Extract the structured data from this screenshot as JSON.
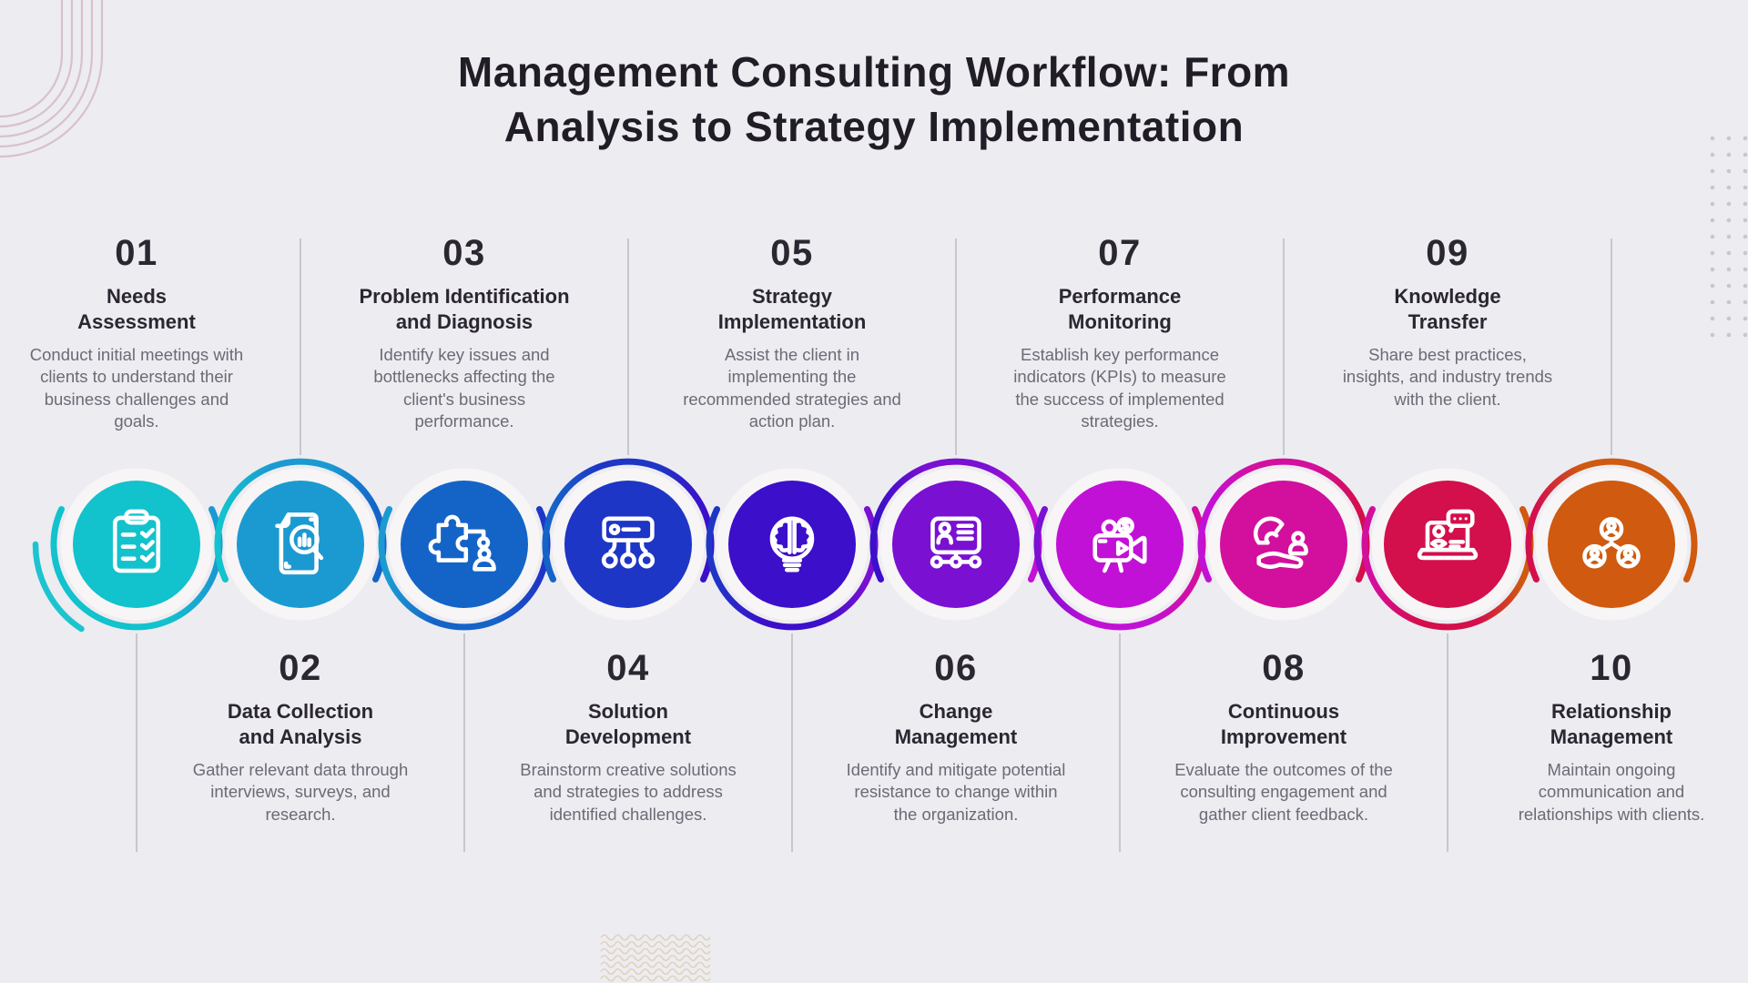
{
  "title": "Management Consulting Workflow: From\nAnalysis to Strategy Implementation",
  "background_color": "#edecf1",
  "text_colors": {
    "heading": "#211d26",
    "step_number": "#2b2731",
    "step_title": "#2b2731",
    "step_description": "#6c6a75"
  },
  "decorations": {
    "corner_arcs_color": "#c79fab",
    "dots_grid_color": "#c8c6ce",
    "waves_color": "#d8c29c",
    "divider_line_color": "#a09ea8",
    "ring_white": "#f7f5f6"
  },
  "steps": [
    {
      "number": "01",
      "title": "Needs\nAssessment",
      "description": "Conduct initial meetings with clients to understand their business challenges and goals.",
      "color": "#12c2cc",
      "icon": "clipboard-checklist",
      "text_position": "top"
    },
    {
      "number": "02",
      "title": "Data Collection\nand Analysis",
      "description": "Gather relevant data through interviews, surveys, and research.",
      "color": "#1b9ad2",
      "icon": "document-analysis",
      "text_position": "bottom"
    },
    {
      "number": "03",
      "title": "Problem Identification\nand Diagnosis",
      "description": "Identify key issues and bottlenecks affecting the client's business performance.",
      "color": "#1464c8",
      "icon": "puzzle-person",
      "text_position": "top"
    },
    {
      "number": "04",
      "title": "Solution\nDevelopment",
      "description": "Brainstorm creative solutions and strategies to address identified challenges.",
      "color": "#1e36c6",
      "icon": "sitemap-hierarchy",
      "text_position": "bottom"
    },
    {
      "number": "05",
      "title": "Strategy\nImplementation",
      "description": "Assist the client in implementing the recommended strategies and action plan.",
      "color": "#3c0fca",
      "icon": "brain-lightbulb",
      "text_position": "top"
    },
    {
      "number": "06",
      "title": "Change\nManagement",
      "description": "Identify and mitigate potential resistance to change within the organization.",
      "color": "#7a10d2",
      "icon": "profile-roadmap",
      "text_position": "bottom"
    },
    {
      "number": "07",
      "title": "Performance\nMonitoring",
      "description": "Establish key performance indicators (KPIs) to measure the success of implemented strategies.",
      "color": "#c211d6",
      "icon": "video-camera",
      "text_position": "top"
    },
    {
      "number": "08",
      "title": "Continuous\nImprovement",
      "description": "Evaluate the outcomes of the consulting engagement and gather client feedback.",
      "color": "#d30f9e",
      "icon": "magnet-hand",
      "text_position": "bottom"
    },
    {
      "number": "09",
      "title": "Knowledge\nTransfer",
      "description": "Share best practices, insights, and industry trends with the client.",
      "color": "#d30f4c",
      "icon": "laptop-chat",
      "text_position": "top"
    },
    {
      "number": "10",
      "title": "Relationship\nManagement",
      "description": "Maintain ongoing communication and relationships with clients.",
      "color": "#cf5a10",
      "icon": "team-network",
      "text_position": "bottom"
    }
  ]
}
